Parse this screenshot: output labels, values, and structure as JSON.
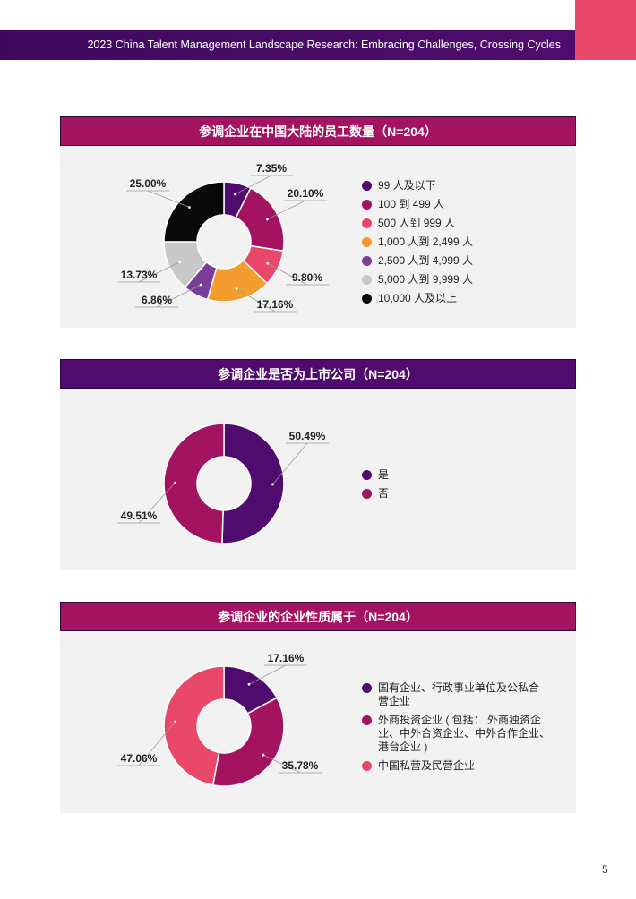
{
  "header": {
    "report_title": "2023 China Talent Management Landscape Research: Embracing Challenges, Crossing Cycles",
    "page_number": "5"
  },
  "colors": {
    "dark_purple": "#4f0c6e",
    "magenta": "#a3135f",
    "pink": "#e9486b",
    "orange": "#f59c2f",
    "violet": "#7a3d98",
    "light_gray": "#c8c8c8",
    "black": "#0a0a0a"
  },
  "chart_data": [
    {
      "type": "pie",
      "title": "参调企业在中国大陆的员工数量（N=204）",
      "categories": [
        "99 人及以下",
        "100 到 499 人",
        "500 人到 999 人",
        "1,000 人到 2,499 人",
        "2,500 人到 4,999 人",
        "5,000 人到 9,999 人",
        "10,000 人及以上"
      ],
      "values": [
        7.35,
        20.1,
        9.8,
        17.16,
        6.86,
        13.73,
        25.0
      ],
      "data_labels": [
        "7.35%",
        "20.10%",
        "9.80%",
        "17.16%",
        "6.86%",
        "13.73%",
        "25.00%"
      ],
      "colors": [
        "#4f0c6e",
        "#a3135f",
        "#e9486b",
        "#f59c2f",
        "#7a3d98",
        "#c8c8c8",
        "#0a0a0a"
      ],
      "legend_position": "right"
    },
    {
      "type": "pie",
      "title": "参调企业是否为上市公司（N=204）",
      "categories": [
        "是",
        "否"
      ],
      "values": [
        50.49,
        49.51
      ],
      "data_labels": [
        "50.49%",
        "49.51%"
      ],
      "colors": [
        "#4f0c6e",
        "#a3135f"
      ],
      "legend_position": "right"
    },
    {
      "type": "pie",
      "title": "参调企业的企业性质属于（N=204）",
      "categories": [
        "国有企业、行政事业单位及公私合营企业",
        "外商投资企业 ( 包括： 外商独资企业、中外合资企业、中外合作企业、港台企业 )",
        "中国私营及民营企业"
      ],
      "legend_lines": [
        [
          "国有企业、行政事业单位及公私合",
          "营企业"
        ],
        [
          "外商投资企业 ( 包括： 外商独资企",
          "业、中外合资企业、中外合作企业、",
          "港台企业 )"
        ],
        [
          "中国私营及民营企业"
        ]
      ],
      "values": [
        17.16,
        35.78,
        47.06
      ],
      "data_labels": [
        "17.16%",
        "35.78%",
        "47.06%"
      ],
      "colors": [
        "#4f0c6e",
        "#a3135f",
        "#e9486b"
      ],
      "legend_position": "right"
    }
  ]
}
